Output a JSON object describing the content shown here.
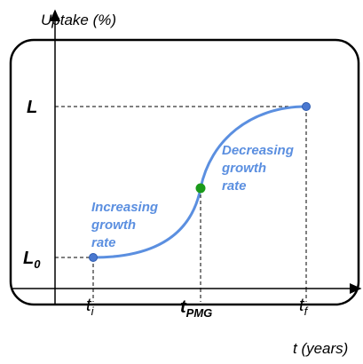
{
  "axes": {
    "y_label": "Uptake (%)",
    "x_label": "t (years)"
  },
  "levels": {
    "upper": {
      "main": "L"
    },
    "lower": {
      "main": "L",
      "sub": "0"
    }
  },
  "times": {
    "start": {
      "main": "t",
      "sub": "i"
    },
    "middle": {
      "main": "t",
      "sub": "PMG"
    },
    "end": {
      "main": "t",
      "sub": "f"
    }
  },
  "annotations": {
    "increasing": [
      "Increasing",
      "growth",
      "rate"
    ],
    "decreasing": [
      "Decreasing",
      "growth",
      "rate"
    ]
  }
}
